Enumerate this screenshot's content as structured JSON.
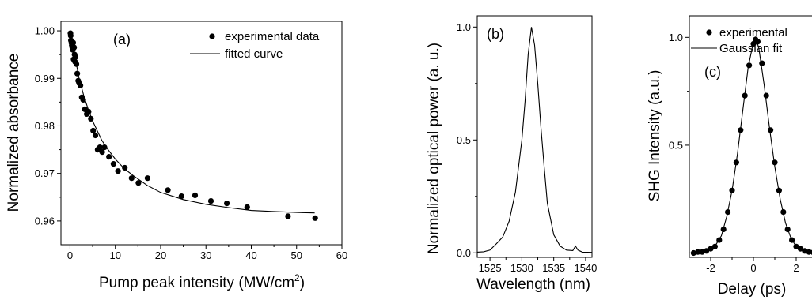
{
  "colors": {
    "ink": "#000000",
    "background": "#ffffff"
  },
  "chart_data": [
    {
      "type": "scatter",
      "panel_label": "(a)",
      "xlabel": "Pump peak intensity (MW/cm",
      "xlabel_sup": "2",
      "xlabel_end": ")",
      "ylabel": "Normalized absorbance",
      "xlim": [
        -2,
        60
      ],
      "ylim": [
        0.955,
        1.002
      ],
      "xticks": [
        0,
        10,
        20,
        30,
        40,
        50,
        60
      ],
      "yticks": [
        0.96,
        0.97,
        0.98,
        0.99,
        1.0
      ],
      "ytick_labels": [
        "0.96",
        "0.97",
        "0.98",
        "0.99",
        "1.00"
      ],
      "grid": false,
      "legend_position": "top-right",
      "series": [
        {
          "name": "experimental data",
          "style": "markers",
          "points": [
            [
              0.1,
              0.9995
            ],
            [
              0.15,
              0.999
            ],
            [
              0.2,
              0.998
            ],
            [
              0.3,
              0.9975
            ],
            [
              0.4,
              0.997
            ],
            [
              0.5,
              0.9965
            ],
            [
              0.6,
              0.996
            ],
            [
              0.7,
              0.9975
            ],
            [
              0.8,
              0.994
            ],
            [
              0.9,
              0.9965
            ],
            [
              1.0,
              0.995
            ],
            [
              1.1,
              0.9935
            ],
            [
              1.2,
              0.9945
            ],
            [
              1.4,
              0.993
            ],
            [
              1.6,
              0.991
            ],
            [
              1.8,
              0.9895
            ],
            [
              2.0,
              0.989
            ],
            [
              2.3,
              0.9885
            ],
            [
              2.6,
              0.986
            ],
            [
              2.9,
              0.9855
            ],
            [
              3.3,
              0.9835
            ],
            [
              3.7,
              0.9825
            ],
            [
              4.1,
              0.983
            ],
            [
              4.6,
              0.9815
            ],
            [
              5.1,
              0.979
            ],
            [
              5.6,
              0.978
            ],
            [
              6.1,
              0.975
            ],
            [
              6.6,
              0.9755
            ],
            [
              7.1,
              0.9745
            ],
            [
              7.6,
              0.9755
            ],
            [
              8.6,
              0.9735
            ],
            [
              9.6,
              0.972
            ],
            [
              10.6,
              0.9705
            ],
            [
              12.1,
              0.9712
            ],
            [
              13.6,
              0.969
            ],
            [
              15.1,
              0.968
            ],
            [
              17.1,
              0.969
            ],
            [
              21.6,
              0.9665
            ],
            [
              24.6,
              0.9652
            ],
            [
              27.6,
              0.9654
            ],
            [
              31.1,
              0.9642
            ],
            [
              34.6,
              0.9637
            ],
            [
              39.1,
              0.9629
            ],
            [
              48.1,
              0.961
            ],
            [
              54.1,
              0.9606
            ]
          ]
        },
        {
          "name": "fitted curve",
          "style": "line",
          "points": [
            [
              0,
              1.0
            ],
            [
              0.5,
              0.9975
            ],
            [
              1,
              0.995
            ],
            [
              2,
              0.99
            ],
            [
              3,
              0.9865
            ],
            [
              4,
              0.9835
            ],
            [
              5,
              0.981
            ],
            [
              6,
              0.979
            ],
            [
              7,
              0.977
            ],
            [
              8,
              0.9755
            ],
            [
              10,
              0.973
            ],
            [
              12,
              0.971
            ],
            [
              14,
              0.9695
            ],
            [
              17,
              0.9675
            ],
            [
              20,
              0.966
            ],
            [
              25,
              0.9645
            ],
            [
              30,
              0.9635
            ],
            [
              35,
              0.9628
            ],
            [
              40,
              0.9622
            ],
            [
              45,
              0.962
            ],
            [
              50,
              0.9618
            ],
            [
              54,
              0.9617
            ]
          ]
        }
      ]
    },
    {
      "type": "line",
      "panel_label": "(b)",
      "xlabel": "Wavelength (nm)",
      "ylabel": "Normalized optical power (a. u.)",
      "xlim": [
        1523,
        1541
      ],
      "ylim": [
        -0.02,
        1.05
      ],
      "xticks": [
        1525,
        1530,
        1535,
        1540
      ],
      "yticks": [
        0.0,
        0.5,
        1.0
      ],
      "ytick_labels": [
        "0.0",
        "0.5",
        "1.0"
      ],
      "grid": false,
      "series": [
        {
          "style": "line",
          "points": [
            [
              1523,
              0.003
            ],
            [
              1524,
              0.005
            ],
            [
              1525,
              0.012
            ],
            [
              1526,
              0.04
            ],
            [
              1527,
              0.07
            ],
            [
              1528,
              0.14
            ],
            [
              1529,
              0.27
            ],
            [
              1530,
              0.5
            ],
            [
              1530.5,
              0.67
            ],
            [
              1531,
              0.88
            ],
            [
              1531.5,
              1.0
            ],
            [
              1532,
              0.92
            ],
            [
              1532.5,
              0.75
            ],
            [
              1533,
              0.55
            ],
            [
              1533.5,
              0.38
            ],
            [
              1534,
              0.22
            ],
            [
              1535,
              0.08
            ],
            [
              1536,
              0.03
            ],
            [
              1537,
              0.012
            ],
            [
              1538,
              0.01
            ],
            [
              1538.4,
              0.03
            ],
            [
              1538.8,
              0.012
            ],
            [
              1539.5,
              0.003
            ],
            [
              1541,
              0.002
            ]
          ]
        }
      ]
    },
    {
      "type": "scatter",
      "panel_label": "(c)",
      "xlabel": "Delay (ps)",
      "ylabel": "SHG Intensity (a.u.)",
      "xlim": [
        -3,
        3
      ],
      "ylim": [
        -0.02,
        1.1
      ],
      "xticks": [
        -2,
        0,
        2
      ],
      "yticks": [
        0.5,
        1.0
      ],
      "ytick_labels": [
        "0.5",
        "1.0"
      ],
      "grid": false,
      "legend_position": "top-right",
      "series": [
        {
          "name": "experimental",
          "style": "markers",
          "points": [
            [
              -2.8,
              0.0
            ],
            [
              -2.6,
              0.005
            ],
            [
              -2.4,
              0.005
            ],
            [
              -2.2,
              0.01
            ],
            [
              -2.0,
              0.02
            ],
            [
              -1.8,
              0.03
            ],
            [
              -1.6,
              0.06
            ],
            [
              -1.4,
              0.11
            ],
            [
              -1.2,
              0.19
            ],
            [
              -1.0,
              0.29
            ],
            [
              -0.8,
              0.42
            ],
            [
              -0.6,
              0.57
            ],
            [
              -0.4,
              0.73
            ],
            [
              -0.2,
              0.87
            ],
            [
              0.0,
              0.97
            ],
            [
              0.1,
              0.99
            ],
            [
              0.2,
              0.98
            ],
            [
              0.4,
              0.88
            ],
            [
              0.6,
              0.73
            ],
            [
              0.8,
              0.57
            ],
            [
              1.0,
              0.42
            ],
            [
              1.2,
              0.29
            ],
            [
              1.4,
              0.19
            ],
            [
              1.6,
              0.11
            ],
            [
              1.8,
              0.06
            ],
            [
              2.0,
              0.03
            ],
            [
              2.2,
              0.02
            ],
            [
              2.4,
              0.01
            ],
            [
              2.6,
              0.005
            ],
            [
              2.8,
              0.003
            ]
          ]
        },
        {
          "name": "Gaussian fit",
          "style": "line",
          "points": [
            [
              -3.0,
              0.0
            ],
            [
              -2.5,
              0.003
            ],
            [
              -2.0,
              0.02
            ],
            [
              -1.75,
              0.04
            ],
            [
              -1.5,
              0.08
            ],
            [
              -1.25,
              0.17
            ],
            [
              -1.0,
              0.29
            ],
            [
              -0.75,
              0.46
            ],
            [
              -0.5,
              0.66
            ],
            [
              -0.25,
              0.86
            ],
            [
              0.0,
              0.98
            ],
            [
              0.1,
              1.0
            ],
            [
              0.25,
              0.95
            ],
            [
              0.5,
              0.78
            ],
            [
              0.75,
              0.58
            ],
            [
              1.0,
              0.4
            ],
            [
              1.25,
              0.25
            ],
            [
              1.5,
              0.14
            ],
            [
              1.75,
              0.07
            ],
            [
              2.0,
              0.03
            ],
            [
              2.5,
              0.005
            ],
            [
              3.0,
              0.0
            ]
          ]
        }
      ]
    }
  ]
}
